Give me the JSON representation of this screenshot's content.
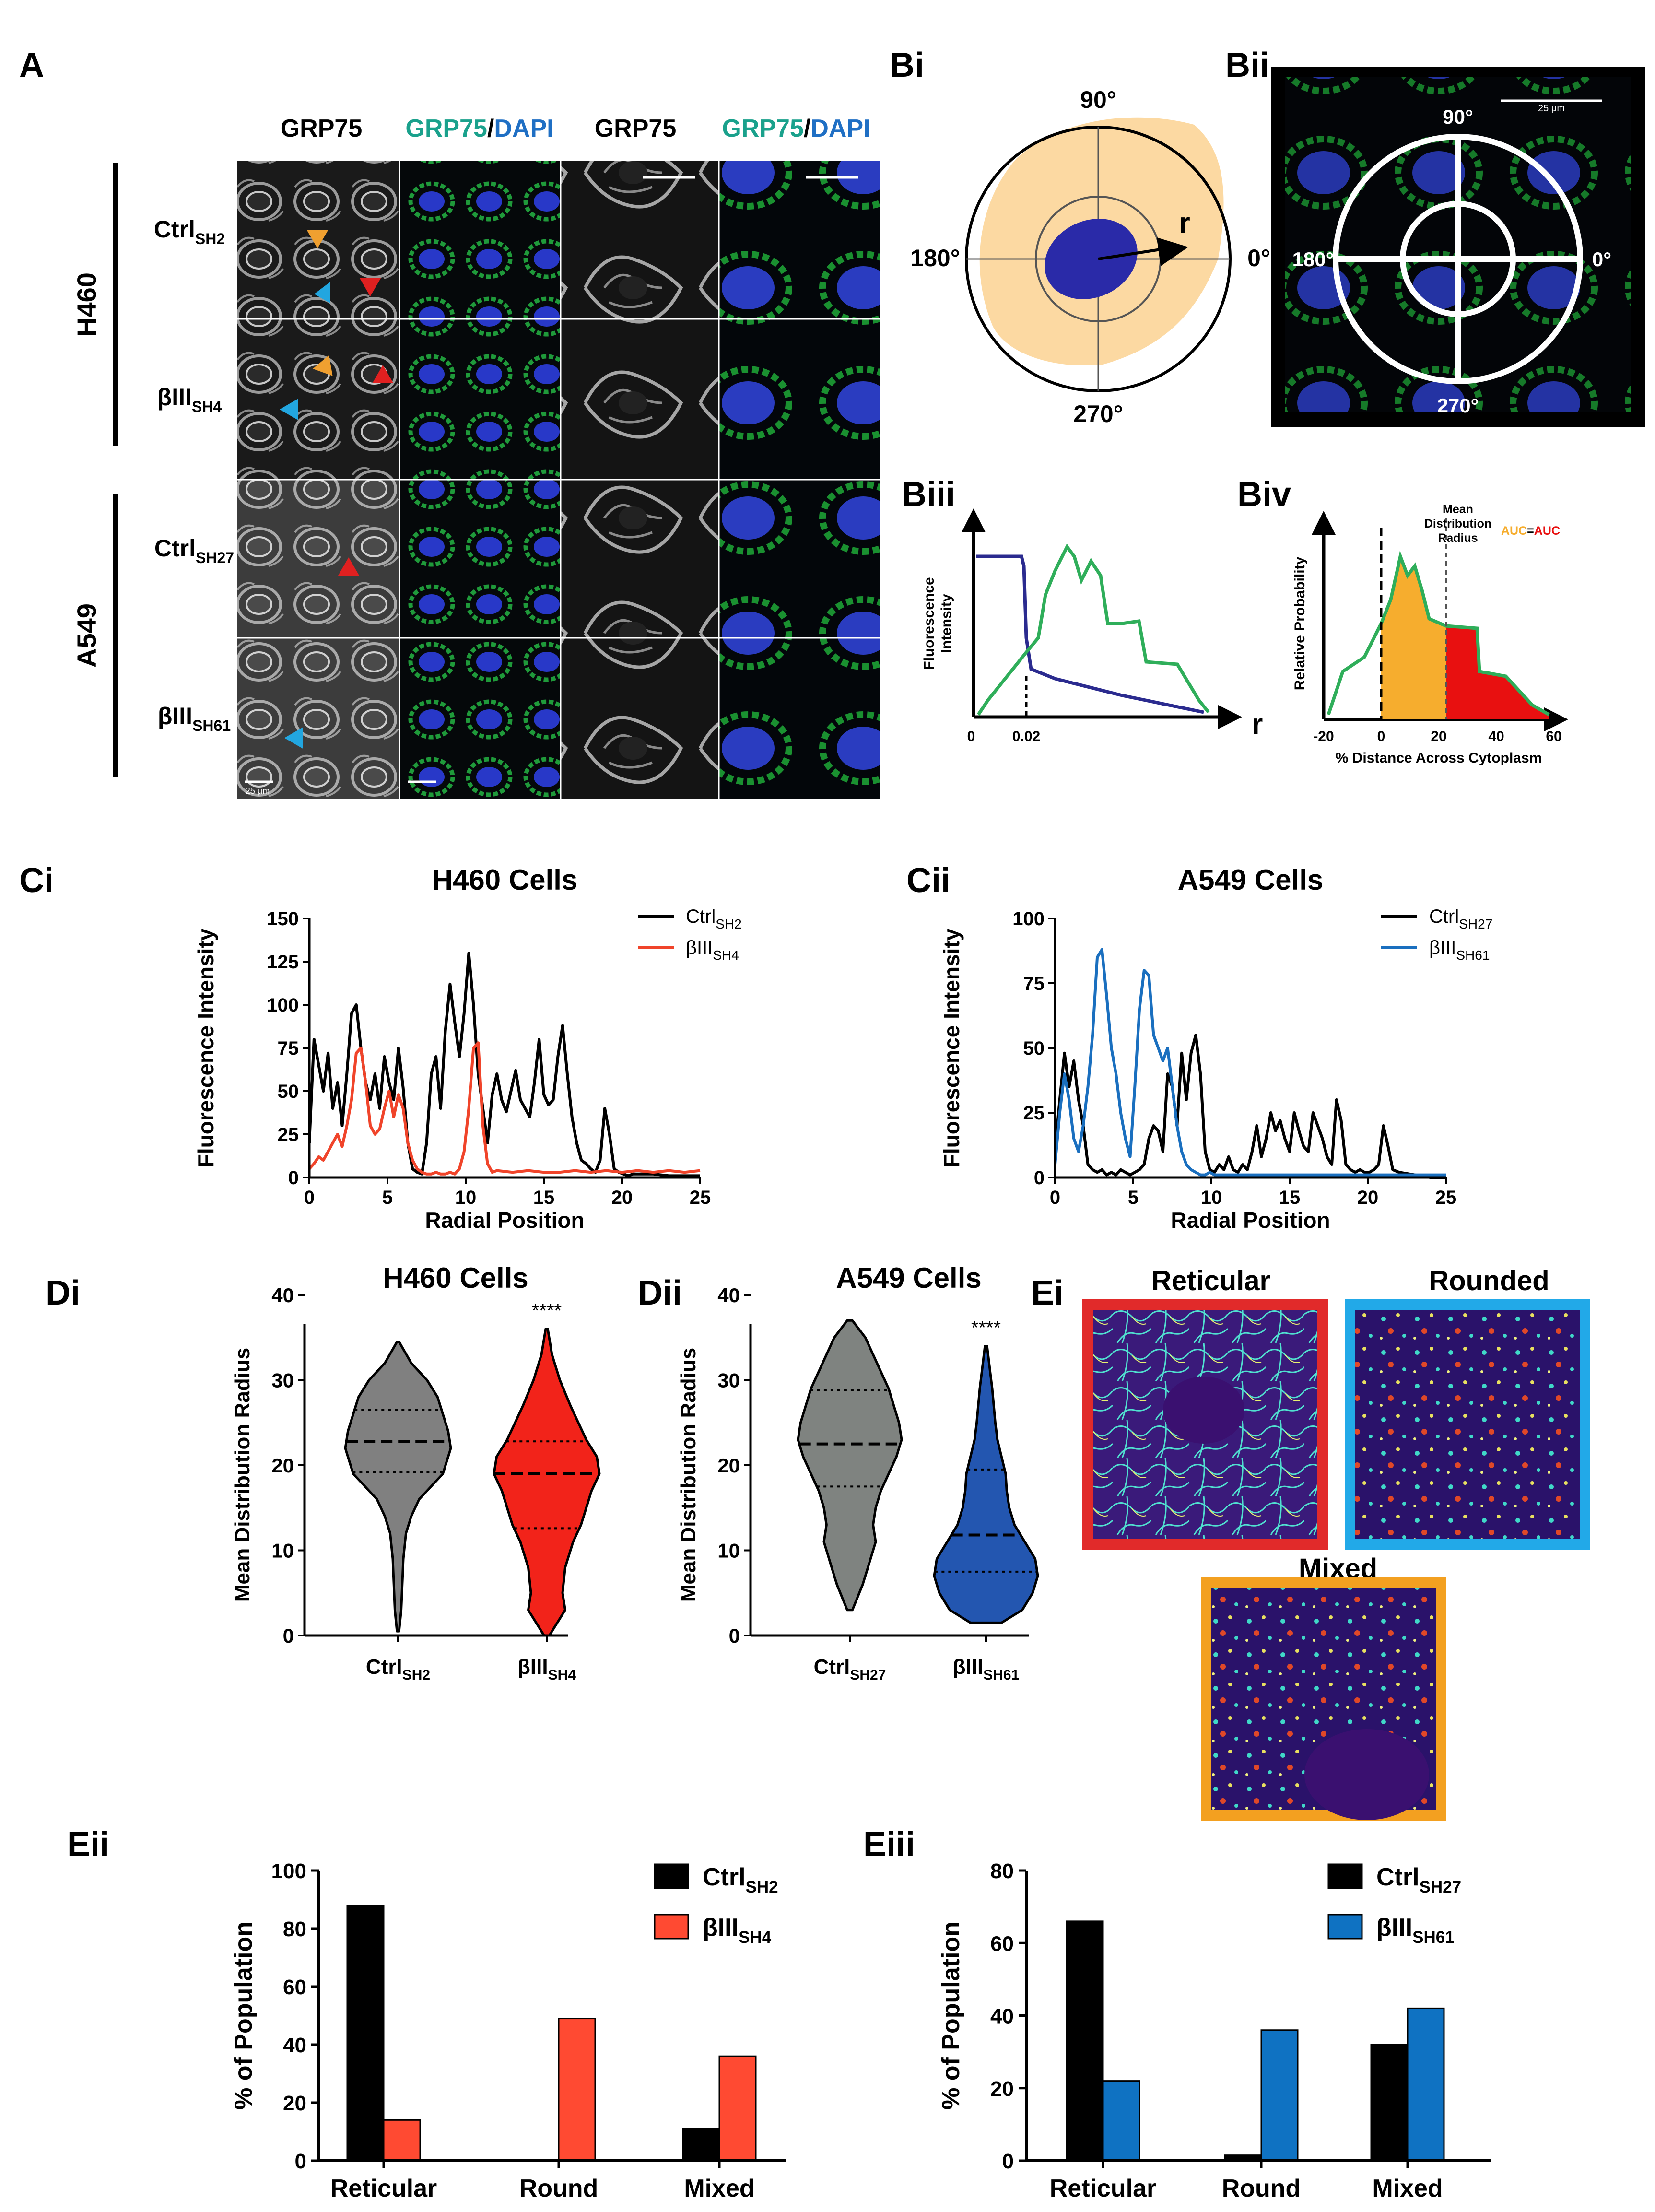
{
  "panel_labels": {
    "A": "A",
    "Bi": "Bi",
    "Bii": "Bii",
    "Biii": "Biii",
    "Biv": "Biv",
    "Ci": "Ci",
    "Cii": "Cii",
    "Di": "Di",
    "Dii": "Dii",
    "Ei": "Ei",
    "Eii": "Eii",
    "Eiii": "Eiii"
  },
  "panel_a": {
    "col1": "GRP75",
    "col2_green": "GRP75",
    "col2_slash": "/",
    "col2_blue": "DAPI",
    "col3": "GRP75",
    "col4_green": "GRP75",
    "col4_slash": "/",
    "col4_blue": "DAPI",
    "group_h460": "H460",
    "group_a549": "A549",
    "rows": [
      {
        "base": "Ctrl",
        "sub": "SH2"
      },
      {
        "base": "βIII",
        "sub": "SH4"
      },
      {
        "base": "Ctrl",
        "sub": "SH27"
      },
      {
        "base": "βIII",
        "sub": "SH61"
      }
    ],
    "scale_bar_label": "25 μm",
    "colors": {
      "green": "#1aa18c",
      "blue": "#1f6fc4",
      "orange_arrow": "#f0a030",
      "red_arrow": "#e02020",
      "cyan_arrow": "#22a6e0"
    }
  },
  "panel_bi": {
    "angle_90": "90°",
    "angle_180": "180°",
    "angle_0": "0°",
    "angle_270": "270°",
    "radius": "r",
    "colors": {
      "cytoplasm": "#fcd9a2",
      "nucleus": "#2a2aa8"
    }
  },
  "panel_bii": {
    "angle_90": "90°",
    "angle_180": "180°",
    "angle_0": "0°",
    "angle_270": "270°",
    "scale": "25 μm"
  },
  "panel_biii": {
    "ylabel_line1": "Fluorescence",
    "ylabel_line2": "Intensity",
    "tick_0": "0",
    "tick_002": "0.02",
    "xvar": "r"
  },
  "panel_biv": {
    "ylabel": "Relative Probability",
    "xlabel": "% Distance Across Cytoplasm",
    "xticks": [
      "-20",
      "0",
      "20",
      "40",
      "60"
    ],
    "mdr_line1": "Mean",
    "mdr_line2": "Distribution",
    "mdr_line3": "Radius",
    "auc_left": "AUC",
    "auc_eq": "=",
    "auc_right": "AUC",
    "colors": {
      "orange": "#f6ad2e",
      "red": "#e81010",
      "green": "#2fae5a"
    }
  },
  "chart_data": [
    {
      "id": "Ci",
      "type": "line",
      "title": "H460 Cells",
      "xlabel": "Radial Position",
      "ylabel": "Fluorescence Intensity",
      "xlim": [
        0,
        25
      ],
      "ylim": [
        0,
        150
      ],
      "xticks": [
        0,
        5,
        10,
        15,
        20,
        25
      ],
      "yticks": [
        0,
        25,
        50,
        75,
        100,
        125,
        150
      ],
      "series": [
        {
          "name": "Ctrl",
          "sub": "SH2",
          "color": "#000000",
          "x": [
            0,
            0.3,
            0.6,
            0.9,
            1.2,
            1.5,
            1.8,
            2.1,
            2.4,
            2.7,
            3.0,
            3.3,
            3.6,
            3.9,
            4.2,
            4.5,
            4.8,
            5.1,
            5.4,
            5.7,
            6.0,
            6.3,
            6.6,
            6.9,
            7.2,
            7.5,
            7.8,
            8.1,
            8.4,
            8.7,
            9.0,
            9.3,
            9.6,
            9.9,
            10.2,
            10.5,
            10.8,
            11.1,
            11.4,
            11.7,
            12.0,
            12.3,
            12.6,
            12.9,
            13.2,
            13.5,
            13.8,
            14.1,
            14.4,
            14.7,
            15.0,
            15.3,
            15.6,
            15.9,
            16.2,
            16.5,
            16.8,
            17.1,
            17.4,
            17.7,
            18.0,
            18.3,
            18.6,
            18.9,
            19.2,
            19.5,
            19.8,
            20.1,
            20.4,
            20.7,
            21.0,
            22.0,
            23.0,
            24.0,
            25.0
          ],
          "y": [
            20,
            80,
            65,
            50,
            72,
            40,
            55,
            30,
            60,
            95,
            100,
            75,
            55,
            45,
            60,
            40,
            70,
            55,
            45,
            75,
            52,
            20,
            5,
            3,
            2,
            20,
            60,
            70,
            40,
            85,
            112,
            90,
            70,
            95,
            130,
            100,
            60,
            40,
            20,
            48,
            60,
            45,
            38,
            50,
            62,
            45,
            40,
            35,
            55,
            80,
            48,
            42,
            45,
            70,
            88,
            60,
            35,
            20,
            10,
            8,
            5,
            3,
            10,
            40,
            25,
            5,
            3,
            2,
            1,
            2,
            2,
            2,
            1,
            1,
            1
          ]
        },
        {
          "name": "βIII",
          "sub": "SH4",
          "color": "#f0442a",
          "x": [
            0,
            0.3,
            0.6,
            0.9,
            1.2,
            1.5,
            1.8,
            2.1,
            2.4,
            2.7,
            3.0,
            3.3,
            3.6,
            3.9,
            4.2,
            4.5,
            4.8,
            5.1,
            5.4,
            5.7,
            6.0,
            6.3,
            6.6,
            6.9,
            7.2,
            7.5,
            7.8,
            8.1,
            8.4,
            8.7,
            9.0,
            9.3,
            9.6,
            9.9,
            10.2,
            10.5,
            10.8,
            11.1,
            11.4,
            11.7,
            12.0,
            13.0,
            14.0,
            15.0,
            16.0,
            17.0,
            18.0,
            19.0,
            20.0,
            21.0,
            22.0,
            23.0,
            24.0,
            25.0
          ],
          "y": [
            5,
            8,
            12,
            10,
            15,
            20,
            25,
            18,
            30,
            45,
            72,
            75,
            55,
            30,
            25,
            28,
            40,
            50,
            35,
            48,
            40,
            20,
            10,
            5,
            3,
            2,
            2,
            3,
            2,
            2,
            3,
            2,
            5,
            15,
            40,
            75,
            78,
            30,
            8,
            3,
            4,
            3,
            4,
            3,
            3,
            4,
            3,
            4,
            3,
            4,
            3,
            4,
            3,
            4
          ]
        }
      ]
    },
    {
      "id": "Cii",
      "type": "line",
      "title": "A549 Cells",
      "xlabel": "Radial Position",
      "ylabel": "Fluorescence Intensity",
      "xlim": [
        0,
        25
      ],
      "ylim": [
        0,
        100
      ],
      "xticks": [
        0,
        5,
        10,
        15,
        20,
        25
      ],
      "yticks": [
        0,
        25,
        50,
        75,
        100
      ],
      "series": [
        {
          "name": "Ctrl",
          "sub": "SH27",
          "color": "#000000",
          "x": [
            0,
            0.3,
            0.6,
            0.9,
            1.2,
            1.5,
            1.8,
            2.1,
            2.4,
            2.7,
            3.0,
            3.3,
            3.6,
            3.9,
            4.2,
            4.5,
            4.8,
            5.1,
            5.4,
            5.7,
            6.0,
            6.3,
            6.6,
            6.9,
            7.2,
            7.5,
            7.8,
            8.1,
            8.4,
            8.7,
            9.0,
            9.3,
            9.6,
            9.9,
            10.2,
            10.5,
            10.8,
            11.1,
            11.4,
            11.7,
            12.0,
            12.3,
            12.6,
            12.9,
            13.2,
            13.5,
            13.8,
            14.1,
            14.4,
            14.7,
            15.0,
            15.3,
            15.6,
            15.9,
            16.2,
            16.5,
            16.8,
            17.1,
            17.4,
            17.7,
            18.0,
            18.3,
            18.6,
            18.9,
            19.2,
            19.5,
            19.8,
            20.1,
            20.4,
            20.7,
            21.0,
            21.3,
            21.6,
            22.0,
            23.0,
            24.0,
            25.0
          ],
          "y": [
            10,
            30,
            48,
            35,
            45,
            30,
            20,
            5,
            3,
            2,
            3,
            1,
            2,
            1,
            3,
            2,
            1,
            2,
            3,
            5,
            15,
            20,
            18,
            10,
            40,
            35,
            20,
            48,
            30,
            48,
            55,
            40,
            10,
            3,
            2,
            5,
            3,
            8,
            3,
            2,
            5,
            3,
            10,
            20,
            8,
            15,
            25,
            18,
            22,
            15,
            10,
            25,
            18,
            12,
            10,
            25,
            20,
            15,
            8,
            5,
            30,
            22,
            5,
            3,
            2,
            3,
            2,
            2,
            3,
            5,
            20,
            12,
            3,
            2,
            1,
            0,
            0
          ]
        },
        {
          "name": "βIII",
          "sub": "SH61",
          "color": "#1a6fbf",
          "x": [
            0,
            0.3,
            0.6,
            0.9,
            1.2,
            1.5,
            1.8,
            2.1,
            2.4,
            2.7,
            3.0,
            3.3,
            3.6,
            3.9,
            4.2,
            4.5,
            4.8,
            5.1,
            5.4,
            5.7,
            6.0,
            6.3,
            6.6,
            6.9,
            7.2,
            7.5,
            7.8,
            8.1,
            8.4,
            8.7,
            9.0,
            9.3,
            9.6,
            9.9,
            10.2,
            10.5,
            11.0,
            12.0,
            13.0,
            14.0,
            15.0,
            16.0,
            17.0,
            18.0,
            19.0,
            20.0,
            21.0,
            22.0,
            23.0,
            24.0,
            25.0
          ],
          "y": [
            5,
            25,
            40,
            30,
            15,
            10,
            20,
            35,
            55,
            85,
            88,
            70,
            50,
            40,
            25,
            15,
            8,
            35,
            65,
            80,
            78,
            55,
            50,
            45,
            50,
            35,
            20,
            10,
            5,
            3,
            2,
            1,
            1,
            2,
            1,
            1,
            1,
            1,
            1,
            1,
            1,
            1,
            1,
            1,
            1,
            1,
            1,
            1,
            1,
            1,
            1
          ]
        }
      ]
    },
    {
      "id": "Di",
      "type": "violin",
      "title": "H460 Cells",
      "ylabel": "Mean Distribution Radius",
      "ylim": [
        0,
        40
      ],
      "yticks": [
        0,
        10,
        20,
        30,
        40
      ],
      "significance": "****",
      "groups": [
        {
          "name": "Ctrl",
          "sub": "SH2",
          "color": "#808080",
          "min": 0.5,
          "max": 34.5,
          "q1": 19.2,
          "median": 22.8,
          "q3": 26.5,
          "profile_y": [
            0.5,
            3,
            6,
            9,
            12,
            14,
            16,
            18,
            19,
            20,
            22,
            24,
            26,
            28,
            30,
            32,
            34.5
          ],
          "profile_w": [
            0.02,
            0.06,
            0.08,
            0.1,
            0.15,
            0.25,
            0.4,
            0.7,
            0.85,
            0.9,
            1.0,
            0.95,
            0.85,
            0.75,
            0.55,
            0.25,
            0.02
          ]
        },
        {
          "name": "βIII",
          "sub": "SH4",
          "color": "#f2231a",
          "min": 0,
          "max": 36,
          "q1": 12.6,
          "median": 19.0,
          "q3": 22.8,
          "profile_y": [
            0,
            1.5,
            3,
            5,
            8,
            11,
            13,
            15,
            17,
            19,
            21,
            23,
            25,
            27,
            30,
            33,
            36
          ],
          "profile_w": [
            0.05,
            0.2,
            0.35,
            0.3,
            0.35,
            0.5,
            0.65,
            0.75,
            0.85,
            1.0,
            0.95,
            0.75,
            0.6,
            0.45,
            0.25,
            0.1,
            0.02
          ]
        }
      ]
    },
    {
      "id": "Dii",
      "type": "violin",
      "title": "A549 Cells",
      "ylabel": "Mean Distribution Radius",
      "ylim": [
        0,
        40
      ],
      "yticks": [
        0,
        10,
        20,
        30,
        40
      ],
      "significance": "****",
      "groups": [
        {
          "name": "Ctrl",
          "sub": "SH27",
          "color": "#7f8380",
          "min": 3,
          "max": 37,
          "q1": 17.5,
          "median": 22.5,
          "q3": 28.8,
          "profile_y": [
            3,
            6,
            9,
            11,
            13,
            15,
            17,
            19,
            21,
            23,
            25,
            27,
            29,
            31,
            33,
            35,
            37
          ],
          "profile_w": [
            0.05,
            0.25,
            0.4,
            0.5,
            0.45,
            0.5,
            0.6,
            0.75,
            0.9,
            1.0,
            0.95,
            0.85,
            0.75,
            0.6,
            0.45,
            0.3,
            0.05
          ]
        },
        {
          "name": "βIII",
          "sub": "SH61",
          "color": "#2356b0",
          "min": 1.5,
          "max": 34,
          "q1": 7.5,
          "median": 11.8,
          "q3": 19.5,
          "profile_y": [
            1.5,
            3,
            5,
            7,
            9,
            11,
            13,
            15,
            17,
            19,
            21,
            23,
            25,
            27,
            29,
            31,
            34
          ],
          "profile_w": [
            0.3,
            0.7,
            0.9,
            1.0,
            0.95,
            0.75,
            0.55,
            0.45,
            0.4,
            0.38,
            0.3,
            0.22,
            0.18,
            0.15,
            0.12,
            0.08,
            0.02
          ]
        }
      ]
    },
    {
      "id": "Eii",
      "type": "bar",
      "ylabel": "% of Population",
      "categories": [
        "Reticular",
        "Round",
        "Mixed"
      ],
      "ylim": [
        0,
        100
      ],
      "yticks": [
        0,
        20,
        40,
        60,
        80,
        100
      ],
      "series": [
        {
          "name": "Ctrl",
          "sub": "SH2",
          "color": "#000000",
          "values": [
            88,
            0,
            11
          ]
        },
        {
          "name": "βIII",
          "sub": "SH4",
          "color": "#ff4a32",
          "values": [
            14,
            49,
            36
          ]
        }
      ]
    },
    {
      "id": "Eiii",
      "type": "bar",
      "ylabel": "% of Population",
      "categories": [
        "Reticular",
        "Round",
        "Mixed"
      ],
      "ylim": [
        0,
        80
      ],
      "yticks": [
        0,
        20,
        40,
        60,
        80
      ],
      "series": [
        {
          "name": "Ctrl",
          "sub": "SH27",
          "color": "#000000",
          "values": [
            66,
            1.5,
            32
          ]
        },
        {
          "name": "βIII",
          "sub": "SH61",
          "color": "#0f72c2",
          "values": [
            22,
            36,
            42
          ]
        }
      ]
    }
  ],
  "panel_ei": {
    "reticular": "Reticular",
    "rounded": "Rounded",
    "mixed": "Mixed",
    "colors": {
      "reticular": "#e12a2a",
      "rounded": "#22a9e8",
      "mixed": "#f3a020"
    }
  }
}
